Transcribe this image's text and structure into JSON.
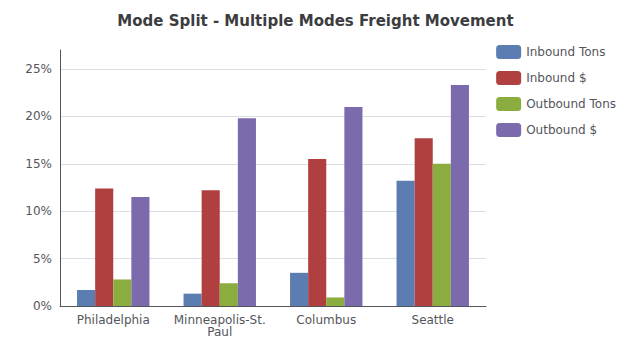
{
  "chart_data": {
    "type": "bar",
    "title": "Mode Split - Multiple Modes Freight Movement",
    "categories": [
      "Philadelphia",
      "Minneapolis-St.\nPaul",
      "Columbus",
      "Seattle"
    ],
    "series": [
      {
        "name": "Inbound Tons",
        "color": "#5B7DB1",
        "values": [
          0.017,
          0.013,
          0.035,
          0.132
        ]
      },
      {
        "name": "Inbound $",
        "color": "#B04040",
        "values": [
          0.124,
          0.122,
          0.155,
          0.177
        ]
      },
      {
        "name": "Outbound Tons",
        "color": "#8BAD3F",
        "values": [
          0.028,
          0.024,
          0.009,
          0.15
        ]
      },
      {
        "name": "Outbound $",
        "color": "#7B6BAD",
        "values": [
          0.115,
          0.198,
          0.21,
          0.233
        ]
      }
    ],
    "ylim": [
      0,
      0.27
    ],
    "yticks": [
      {
        "value": 0.0,
        "label": "0%"
      },
      {
        "value": 0.05,
        "label": "5%"
      },
      {
        "value": 0.1,
        "label": "10%"
      },
      {
        "value": 0.15,
        "label": "15%"
      },
      {
        "value": 0.2,
        "label": "20%"
      },
      {
        "value": 0.25,
        "label": "25%"
      }
    ],
    "grid": true,
    "legend": "right"
  }
}
